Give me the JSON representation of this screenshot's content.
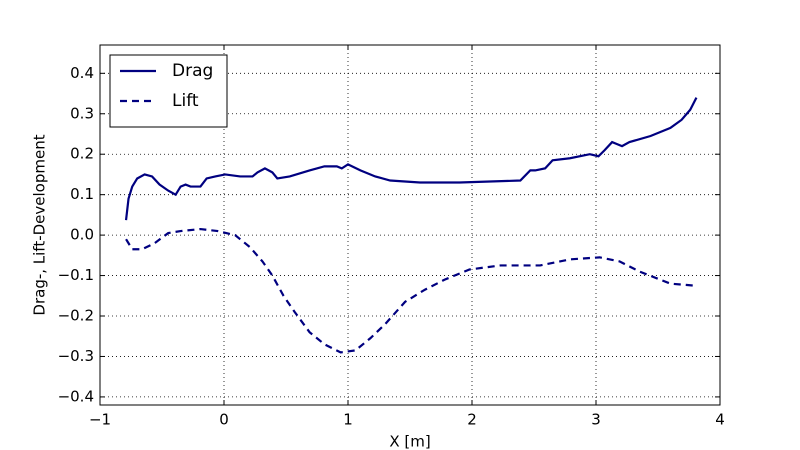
{
  "chart_data": {
    "type": "line",
    "xlabel": "X [m]",
    "ylabel": "Drag-, Lift-Development",
    "xlim": [
      -1,
      4
    ],
    "xticks": [
      {
        "value": -1,
        "label": "−1"
      },
      0,
      1,
      2,
      3,
      4
    ],
    "ylim": [
      -0.42,
      0.47
    ],
    "yticks": [
      {
        "value": -0.4,
        "label": "−0.4"
      },
      {
        "value": -0.3,
        "label": "−0.3"
      },
      {
        "value": -0.2,
        "label": "−0.2"
      },
      {
        "value": -0.1,
        "label": "−0.1"
      },
      {
        "value": 0,
        "label": "0.0"
      },
      0.1,
      0.2,
      0.3,
      0.4
    ],
    "grid": true,
    "legend": "upper left",
    "series": [
      {
        "name": "Drag",
        "color": "#000080",
        "linestyle": "solid",
        "x": [
          -0.79,
          -0.77,
          -0.74,
          -0.7,
          -0.64,
          -0.58,
          -0.52,
          -0.45,
          -0.39,
          -0.35,
          -0.31,
          -0.27,
          -0.19,
          -0.14,
          -0.07,
          0.01,
          0.13,
          0.23,
          0.27,
          0.33,
          0.39,
          0.43,
          0.53,
          0.69,
          0.81,
          0.91,
          0.95,
          1.0,
          1.1,
          1.22,
          1.34,
          1.58,
          1.9,
          2.39,
          2.47,
          2.51,
          2.59,
          2.65,
          2.79,
          2.95,
          3.02,
          3.07,
          3.13,
          3.17,
          3.21,
          3.27,
          3.44,
          3.6,
          3.69,
          3.76,
          3.81
        ],
        "values": [
          0.037,
          0.09,
          0.12,
          0.14,
          0.15,
          0.145,
          0.125,
          0.11,
          0.1,
          0.12,
          0.125,
          0.12,
          0.12,
          0.14,
          0.145,
          0.15,
          0.145,
          0.145,
          0.155,
          0.165,
          0.155,
          0.14,
          0.145,
          0.16,
          0.17,
          0.17,
          0.165,
          0.175,
          0.16,
          0.145,
          0.135,
          0.13,
          0.13,
          0.135,
          0.16,
          0.16,
          0.165,
          0.185,
          0.19,
          0.2,
          0.195,
          0.21,
          0.23,
          0.225,
          0.22,
          0.23,
          0.245,
          0.265,
          0.285,
          0.31,
          0.34
        ]
      },
      {
        "name": "Lift",
        "color": "#000080",
        "linestyle": "dashed",
        "x": [
          -0.79,
          -0.74,
          -0.66,
          -0.56,
          -0.45,
          -0.35,
          -0.19,
          -0.05,
          0.09,
          0.21,
          0.31,
          0.39,
          0.48,
          0.57,
          0.69,
          0.81,
          0.94,
          1.06,
          1.18,
          1.3,
          1.46,
          1.62,
          1.78,
          1.98,
          2.23,
          2.39,
          2.55,
          2.79,
          3.03,
          3.19,
          3.35,
          3.6,
          3.8
        ],
        "values": [
          -0.01,
          -0.035,
          -0.035,
          -0.02,
          0.005,
          0.01,
          0.015,
          0.01,
          0.0,
          -0.03,
          -0.065,
          -0.1,
          -0.15,
          -0.19,
          -0.24,
          -0.27,
          -0.29,
          -0.285,
          -0.255,
          -0.22,
          -0.165,
          -0.135,
          -0.11,
          -0.085,
          -0.075,
          -0.075,
          -0.075,
          -0.06,
          -0.055,
          -0.065,
          -0.09,
          -0.12,
          -0.125
        ]
      }
    ]
  }
}
